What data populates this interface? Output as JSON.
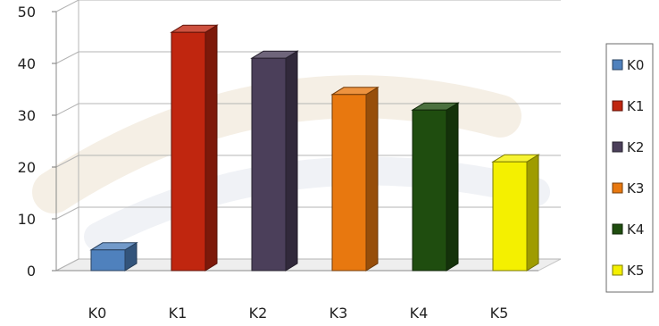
{
  "chart_data": {
    "type": "bar",
    "categories": [
      "K0",
      "K1",
      "K2",
      "K3",
      "K4",
      "K5"
    ],
    "values": [
      4,
      46,
      41,
      34,
      31,
      21
    ],
    "ylim": [
      0,
      50
    ],
    "yticks": [
      0,
      10,
      20,
      30,
      40,
      50
    ],
    "grid": true,
    "legend_position": "right",
    "colors": [
      "#4f81bd",
      "#c0260f",
      "#4b3f5a",
      "#e8780f",
      "#1f4d0f",
      "#f4f000"
    ],
    "title": "",
    "xlabel": "",
    "ylabel": ""
  },
  "legend": {
    "items": [
      "K0",
      "K1",
      "K2",
      "K3",
      "K4",
      "K5"
    ]
  }
}
